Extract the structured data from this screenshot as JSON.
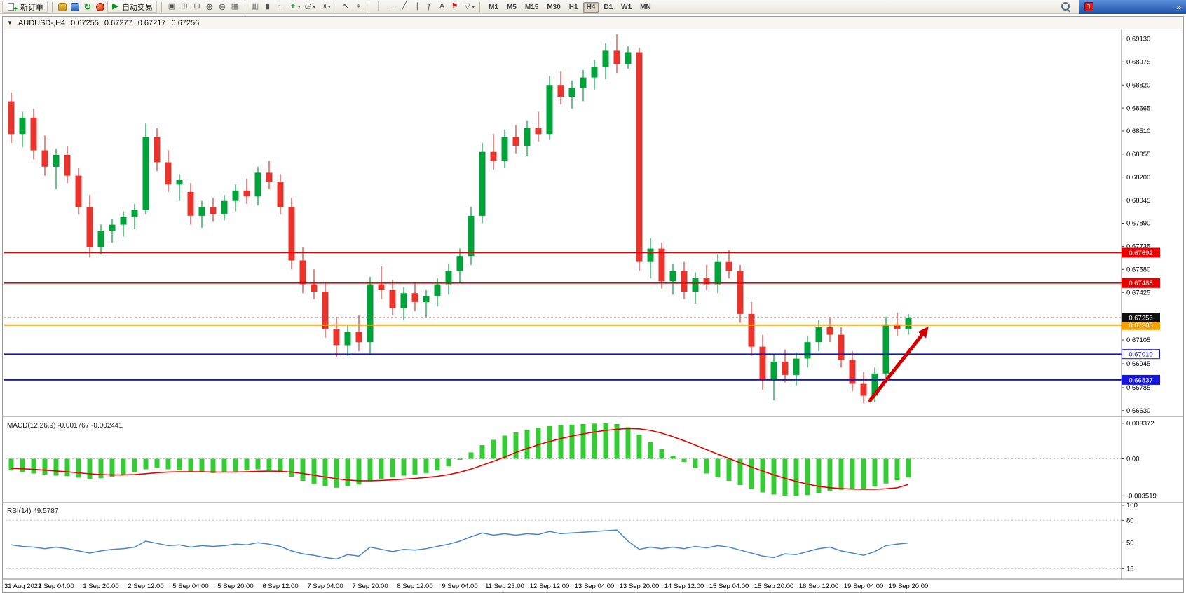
{
  "toolbar": {
    "new_order_label": "新订单",
    "autotrade_label": "自动交易",
    "timeframes": [
      "M1",
      "M5",
      "M15",
      "M30",
      "H1",
      "H4",
      "D1",
      "W1",
      "MN"
    ],
    "active_timeframe": "H4",
    "notification_count": "1",
    "overflow_glyph": "»",
    "icons": {
      "plus": "+",
      "refresh": "↻",
      "play": "▶",
      "cascade": "▣",
      "tile_h": "⊞",
      "tile_v": "⊟",
      "zoom_in": "⊕",
      "zoom_out": "⊖",
      "grid": "▦",
      "chart_bars": "▥",
      "chart_candles": "▮",
      "chart_line": "~",
      "indicator_plus": "+",
      "clock": "◷",
      "shift": "⇥",
      "cursor": "↖",
      "crosshair": "⌖",
      "vline": "│",
      "hline": "─",
      "trendline": "╱",
      "channel": "∥",
      "fibonacci": "ƒ",
      "text_tool": "A",
      "flag": "⚑",
      "shapes": "▽",
      "dropdown": "▾",
      "collapse": "▼"
    }
  },
  "chart_header": {
    "symbol": "AUDUSD-,H4",
    "open": "0.67255",
    "high": "0.67277",
    "low": "0.67217",
    "close": "0.67256"
  },
  "colors": {
    "bull": "#00A33A",
    "bear": "#E8342C",
    "macd_hist": "#33CC33",
    "macd_signal": "#E80000",
    "rsi_line": "#4A86C8",
    "arrow": "#D40000"
  },
  "chart_data": {
    "type": "candlestick",
    "symbol": "AUDUSD",
    "timeframe": "H4",
    "price_axis": {
      "min": 0.66615,
      "max": 0.69165,
      "ticks": [
        "0.69130",
        "0.68975",
        "0.68820",
        "0.68665",
        "0.68510",
        "0.68355",
        "0.68200",
        "0.68045",
        "0.67890",
        "0.67735",
        "0.67580",
        "0.67425",
        "0.67270",
        "0.67105",
        "0.66945",
        "0.66785",
        "0.66630"
      ]
    },
    "hlines": [
      {
        "price": 0.67692,
        "label": "0.67692",
        "color": "#E80000",
        "width": 1.6,
        "style": "solid"
      },
      {
        "price": 0.67488,
        "label": "0.67488",
        "color": "#E80000",
        "width": 1.6,
        "style": "solid"
      },
      {
        "price": 0.67205,
        "label": "0.67205",
        "color": "#F5A000",
        "width": 2,
        "style": "solid"
      },
      {
        "price": 0.6701,
        "label": "0.67010",
        "color": "#1515DD",
        "width": 1.6,
        "style": "outline"
      },
      {
        "price": 0.66837,
        "label": "0.66837",
        "color": "#1515DD",
        "width": 2,
        "style": "solid"
      }
    ],
    "current_price": {
      "value": 0.67256,
      "label": "0.67256",
      "box_color": "#101010"
    },
    "time_labels": [
      "31 Aug 2022",
      "1 Sep 04:00",
      "1 Sep 20:00",
      "2 Sep 12:00",
      "5 Sep 04:00",
      "5 Sep 20:00",
      "6 Sep 12:00",
      "7 Sep 04:00",
      "7 Sep 20:00",
      "8 Sep 12:00",
      "9 Sep 04:00",
      "11 Sep 23:00",
      "12 Sep 12:00",
      "13 Sep 04:00",
      "13 Sep 20:00",
      "14 Sep 12:00",
      "15 Sep 04:00",
      "15 Sep 20:00",
      "16 Sep 12:00",
      "19 Sep 04:00",
      "19 Sep 20:00"
    ],
    "candles": [
      [
        0.6871,
        0.6877,
        0.6843,
        0.6849
      ],
      [
        0.6849,
        0.6864,
        0.684,
        0.686
      ],
      [
        0.686,
        0.6866,
        0.6832,
        0.6838
      ],
      [
        0.6838,
        0.6848,
        0.6821,
        0.6827
      ],
      [
        0.6827,
        0.6839,
        0.6812,
        0.6835
      ],
      [
        0.6835,
        0.6841,
        0.6816,
        0.6821
      ],
      [
        0.6821,
        0.6826,
        0.6795,
        0.68
      ],
      [
        0.68,
        0.6808,
        0.6766,
        0.6773
      ],
      [
        0.6773,
        0.6788,
        0.6768,
        0.6784
      ],
      [
        0.6784,
        0.6792,
        0.6776,
        0.6788
      ],
      [
        0.6788,
        0.6797,
        0.678,
        0.6793
      ],
      [
        0.6793,
        0.6802,
        0.6785,
        0.6798
      ],
      [
        0.6798,
        0.6856,
        0.6795,
        0.6847
      ],
      [
        0.6847,
        0.6853,
        0.6824,
        0.683
      ],
      [
        0.683,
        0.6838,
        0.681,
        0.6815
      ],
      [
        0.6815,
        0.6822,
        0.6804,
        0.6818
      ],
      [
        0.681,
        0.6816,
        0.6788,
        0.6794
      ],
      [
        0.6794,
        0.6804,
        0.6786,
        0.68
      ],
      [
        0.68,
        0.6806,
        0.679,
        0.6795
      ],
      [
        0.6795,
        0.6808,
        0.6791,
        0.6804
      ],
      [
        0.6804,
        0.6815,
        0.6797,
        0.6811
      ],
      [
        0.6811,
        0.6819,
        0.6802,
        0.6807
      ],
      [
        0.6807,
        0.6827,
        0.6801,
        0.6823
      ],
      [
        0.6823,
        0.6831,
        0.6812,
        0.6817
      ],
      [
        0.6817,
        0.6822,
        0.6795,
        0.68
      ],
      [
        0.68,
        0.6806,
        0.6758,
        0.6764
      ],
      [
        0.6764,
        0.6773,
        0.6742,
        0.6748
      ],
      [
        0.6748,
        0.6758,
        0.6738,
        0.6743
      ],
      [
        0.6743,
        0.6749,
        0.6712,
        0.6718
      ],
      [
        0.6718,
        0.6726,
        0.6699,
        0.6707
      ],
      [
        0.6707,
        0.6721,
        0.67,
        0.6716
      ],
      [
        0.6716,
        0.6727,
        0.6703,
        0.6709
      ],
      [
        0.6709,
        0.6753,
        0.6701,
        0.6748
      ],
      [
        0.6748,
        0.676,
        0.6738,
        0.6744
      ],
      [
        0.6744,
        0.6751,
        0.6727,
        0.6732
      ],
      [
        0.6732,
        0.6746,
        0.6724,
        0.6742
      ],
      [
        0.6742,
        0.6749,
        0.673,
        0.6736
      ],
      [
        0.6736,
        0.6744,
        0.6726,
        0.674
      ],
      [
        0.674,
        0.6752,
        0.6733,
        0.6748
      ],
      [
        0.6748,
        0.6762,
        0.6741,
        0.6757
      ],
      [
        0.6757,
        0.6772,
        0.6749,
        0.6767
      ],
      [
        0.6767,
        0.68,
        0.6761,
        0.6794
      ],
      [
        0.6794,
        0.6843,
        0.6789,
        0.6837
      ],
      [
        0.6837,
        0.6849,
        0.6825,
        0.6831
      ],
      [
        0.6831,
        0.6852,
        0.6826,
        0.6847
      ],
      [
        0.6847,
        0.6855,
        0.6836,
        0.6841
      ],
      [
        0.6841,
        0.6858,
        0.6834,
        0.6853
      ],
      [
        0.6853,
        0.6864,
        0.6844,
        0.6849
      ],
      [
        0.6849,
        0.6888,
        0.6845,
        0.6882
      ],
      [
        0.6882,
        0.6891,
        0.6869,
        0.6874
      ],
      [
        0.6874,
        0.6885,
        0.6866,
        0.688
      ],
      [
        0.688,
        0.6892,
        0.6871,
        0.6887
      ],
      [
        0.6887,
        0.6899,
        0.6879,
        0.6894
      ],
      [
        0.6894,
        0.691,
        0.6886,
        0.6905
      ],
      [
        0.6905,
        0.6916,
        0.689,
        0.6896
      ],
      [
        0.6896,
        0.6908,
        0.6893,
        0.6904
      ],
      [
        0.6904,
        0.6907,
        0.6757,
        0.6763
      ],
      [
        0.6763,
        0.6779,
        0.6752,
        0.6772
      ],
      [
        0.6772,
        0.6776,
        0.6745,
        0.675
      ],
      [
        0.675,
        0.6762,
        0.6741,
        0.6757
      ],
      [
        0.6757,
        0.6763,
        0.6738,
        0.6743
      ],
      [
        0.6743,
        0.6756,
        0.6735,
        0.6752
      ],
      [
        0.6752,
        0.6761,
        0.6744,
        0.6748
      ],
      [
        0.6748,
        0.6768,
        0.6742,
        0.6763
      ],
      [
        0.6763,
        0.6771,
        0.6752,
        0.6757
      ],
      [
        0.6757,
        0.6761,
        0.6722,
        0.6728
      ],
      [
        0.6728,
        0.6736,
        0.67,
        0.6706
      ],
      [
        0.6706,
        0.6714,
        0.6677,
        0.6684
      ],
      [
        0.6684,
        0.6701,
        0.667,
        0.6696
      ],
      [
        0.6696,
        0.6704,
        0.6682,
        0.6687
      ],
      [
        0.6687,
        0.6702,
        0.668,
        0.6698
      ],
      [
        0.6698,
        0.6713,
        0.6692,
        0.6709
      ],
      [
        0.6709,
        0.6724,
        0.6703,
        0.6719
      ],
      [
        0.6719,
        0.6726,
        0.6709,
        0.6714
      ],
      [
        0.6714,
        0.6719,
        0.6692,
        0.6697
      ],
      [
        0.6697,
        0.6703,
        0.6676,
        0.6681
      ],
      [
        0.6681,
        0.6689,
        0.6668,
        0.6673
      ],
      [
        0.6673,
        0.6692,
        0.6669,
        0.6688
      ],
      [
        0.6688,
        0.6726,
        0.6684,
        0.6721
      ],
      [
        0.6721,
        0.6729,
        0.6713,
        0.6718
      ],
      [
        0.6718,
        0.6728,
        0.6714,
        0.67256
      ]
    ],
    "macd": {
      "label": "MACD(12,26,9)",
      "values_text": [
        "-0.001767",
        "-0.002441"
      ],
      "ticks": [
        "0.003372",
        "0.00",
        "-0.003519"
      ],
      "range": [
        -0.0039,
        0.0037
      ],
      "unit": 0.001,
      "histogram": [
        -1.1,
        -1.25,
        -1.4,
        -1.5,
        -1.6,
        -1.65,
        -1.8,
        -1.95,
        -1.85,
        -1.7,
        -1.5,
        -1.3,
        -1.0,
        -0.85,
        -1.0,
        -1.1,
        -1.25,
        -1.3,
        -1.35,
        -1.3,
        -1.2,
        -1.1,
        -1.0,
        -1.1,
        -1.3,
        -1.7,
        -2.1,
        -2.4,
        -2.6,
        -2.75,
        -2.6,
        -2.45,
        -2.1,
        -1.9,
        -1.75,
        -1.6,
        -1.5,
        -1.35,
        -1.1,
        -0.7,
        -0.1,
        0.6,
        1.3,
        1.8,
        2.2,
        2.5,
        2.75,
        2.95,
        3.1,
        3.2,
        3.25,
        3.3,
        3.35,
        3.37,
        3.3,
        3.0,
        2.3,
        1.6,
        0.9,
        0.3,
        -0.3,
        -0.9,
        -1.4,
        -1.75,
        -2.1,
        -2.5,
        -2.9,
        -3.2,
        -3.4,
        -3.5,
        -3.52,
        -3.45,
        -3.25,
        -3.05,
        -2.95,
        -2.9,
        -2.85,
        -2.65,
        -2.35,
        -2.05,
        -1.767
      ],
      "signal": [
        -0.9,
        -0.95,
        -1.0,
        -1.08,
        -1.16,
        -1.24,
        -1.33,
        -1.43,
        -1.5,
        -1.54,
        -1.54,
        -1.5,
        -1.42,
        -1.32,
        -1.26,
        -1.23,
        -1.23,
        -1.24,
        -1.26,
        -1.27,
        -1.26,
        -1.23,
        -1.19,
        -1.17,
        -1.19,
        -1.27,
        -1.4,
        -1.56,
        -1.73,
        -1.9,
        -2.02,
        -2.09,
        -2.09,
        -2.06,
        -2.01,
        -1.94,
        -1.87,
        -1.78,
        -1.67,
        -1.51,
        -1.28,
        -0.98,
        -0.62,
        -0.23,
        0.16,
        0.6,
        0.98,
        1.33,
        1.64,
        1.92,
        2.16,
        2.37,
        2.55,
        2.7,
        2.81,
        2.88,
        2.85,
        2.7,
        2.44,
        2.1,
        1.72,
        1.3,
        0.87,
        0.44,
        0.03,
        -0.38,
        -0.78,
        -1.17,
        -1.53,
        -1.86,
        -2.15,
        -2.41,
        -2.62,
        -2.75,
        -2.83,
        -2.88,
        -2.9,
        -2.9,
        -2.85,
        -2.76,
        -2.441
      ]
    },
    "rsi": {
      "label": "RSI(14)",
      "value_text": "49.5787",
      "ticks": [
        100,
        80,
        50,
        15
      ],
      "levels": [
        80,
        15
      ],
      "range": [
        5,
        100
      ],
      "values": [
        47,
        45,
        44,
        42,
        44,
        42,
        39,
        36,
        39,
        41,
        42,
        44,
        52,
        49,
        46,
        47,
        44,
        46,
        45,
        46,
        48,
        47,
        50,
        48,
        45,
        39,
        35,
        33,
        30,
        28,
        34,
        32,
        44,
        41,
        38,
        41,
        40,
        42,
        45,
        48,
        52,
        58,
        63,
        60,
        62,
        60,
        62,
        61,
        65,
        62,
        63,
        64,
        65,
        66,
        67,
        52,
        41,
        44,
        42,
        44,
        42,
        45,
        43,
        46,
        44,
        40,
        36,
        32,
        30,
        35,
        34,
        38,
        42,
        44,
        39,
        36,
        33,
        38,
        46,
        48,
        49.58
      ],
      "legend_position": "top-left"
    },
    "arrow": {
      "from_slot": 76.5,
      "from_price": 0.6669,
      "to_slot": 81.8,
      "to_price": 0.67195,
      "color": "#D40000"
    }
  }
}
